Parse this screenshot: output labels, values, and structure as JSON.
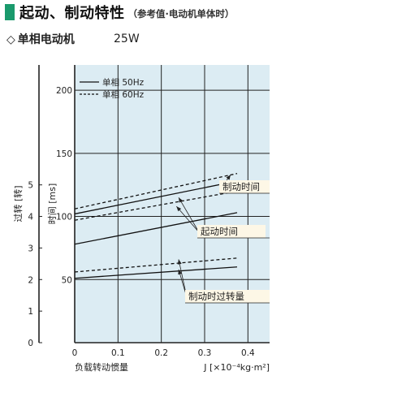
{
  "header": {
    "title": "起动、制动特性",
    "subtitle": "（参考值·电动机单体时）",
    "accent_color": "#1a9a6c"
  },
  "motor": {
    "type_label": "单相电动机",
    "diamond_icon": "◇",
    "power": "25W"
  },
  "chart_data": {
    "type": "line",
    "xlabel": "负载转动惯量",
    "xunit_label": "J [×10⁻⁴kg·m²]",
    "ylabel_time": "时间 [ms]",
    "ylabel_turns": "过转 [转]",
    "xlim": [
      0,
      0.45
    ],
    "ylim_time": [
      0,
      220
    ],
    "ylim_turns": [
      0,
      5.5
    ],
    "x_ticks": [
      "0",
      "0.1",
      "0.2",
      "0.3",
      "0.4"
    ],
    "x_tick_values": [
      0,
      0.1,
      0.2,
      0.3,
      0.4
    ],
    "time_ticks": [
      "200",
      "150",
      "100",
      "50"
    ],
    "time_tick_values": [
      200,
      150,
      100,
      50
    ],
    "turn_ticks": [
      "5",
      "4",
      "3",
      "2",
      "1",
      "0"
    ],
    "turn_tick_values": [
      5,
      4,
      3,
      2,
      1,
      0
    ],
    "grid": true,
    "legend": [
      {
        "label": "单相  50Hz",
        "style": "solid"
      },
      {
        "label": "单相  60Hz",
        "style": "dashed"
      }
    ],
    "series": [
      {
        "group": "制动时间",
        "style": "solid",
        "x": [
          0,
          0.375
        ],
        "y": [
          102,
          128
        ]
      },
      {
        "group": "制动时间",
        "style": "dashed",
        "x": [
          0,
          0.375
        ],
        "y": [
          106,
          134
        ]
      },
      {
        "group": "起动时间",
        "style": "solid",
        "x": [
          0,
          0.375
        ],
        "y": [
          78,
          103
        ]
      },
      {
        "group": "起动时间",
        "style": "dashed",
        "x": [
          0,
          0.375
        ],
        "y": [
          97,
          120
        ]
      },
      {
        "group": "制动时过转量",
        "style": "solid",
        "x": [
          0,
          0.375
        ],
        "y": [
          51,
          60
        ]
      },
      {
        "group": "制动时过转量",
        "style": "dashed",
        "x": [
          0,
          0.375
        ],
        "y": [
          56,
          67
        ]
      }
    ],
    "annotations": [
      "制动时间",
      "起动时间",
      "制动时过转量"
    ]
  }
}
